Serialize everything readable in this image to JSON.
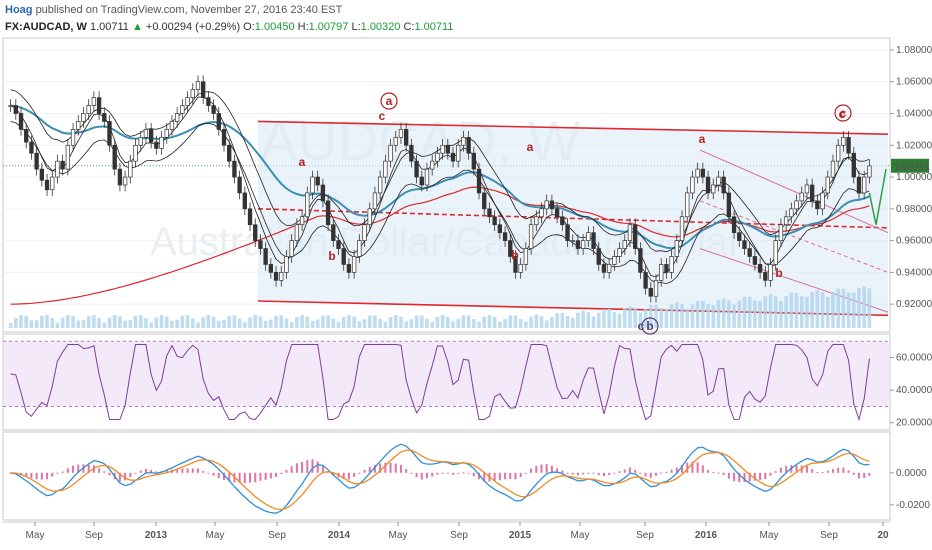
{
  "header": {
    "author": "Hoag",
    "published_text": "published on TradingView.com, November 27, 2016 23:40 EST",
    "symbol": "FX:AUDCAD, W",
    "last_price": "1.00711",
    "change_arrow": "▲",
    "change": "+0.00294 (+0.29%)",
    "open_label": "O:",
    "open": "1.00450",
    "high_label": "H:",
    "high": "1.00797",
    "low_label": "L:",
    "low": "1.00320",
    "close_label": "C:",
    "close": "1.00711"
  },
  "watermark": {
    "line1": "AUDCAD, W",
    "line2": "Australian Dollar/Canadian Dollar"
  },
  "colors": {
    "up_candle": "#ffffff",
    "down_candle": "#333333",
    "channel_line": "#e0282f",
    "channel_fill": "#dcebf7",
    "ema_blue": "#3b8fb3",
    "ema_red": "#e0282f",
    "rsi_line": "#7b3f9e",
    "rsi_fill": "#f0e0f7",
    "macd_line": "#2f8fd8",
    "signal_line": "#f08a24",
    "hist": "#d3377e",
    "wave_label": "#b22222",
    "wave_label_dark": "#5a3c6e"
  },
  "chart_data": [
    {
      "type": "candlestick",
      "title": "FX:AUDCAD, W",
      "y_ticks": [
        "1.08000",
        "1.06000",
        "1.04000",
        "1.02000",
        "1.00000",
        "0.98000",
        "0.96000",
        "0.94000",
        "0.92000"
      ],
      "ylim": [
        0.905,
        1.085
      ],
      "current_price_label": "1.00711",
      "x_ticks": [
        "May",
        "Sep",
        "2013",
        "May",
        "Sep",
        "2014",
        "May",
        "Sep",
        "2015",
        "May",
        "Sep",
        "2016",
        "May",
        "Sep",
        "20"
      ],
      "closes": [
        1.045,
        1.04,
        1.03,
        1.022,
        1.015,
        1.005,
        0.998,
        0.992,
        1.0,
        1.01,
        1.005,
        1.02,
        1.03,
        1.035,
        1.04,
        1.045,
        1.05,
        1.04,
        1.035,
        1.02,
        1.005,
        0.995,
        1.0,
        1.01,
        1.02,
        1.025,
        1.03,
        1.022,
        1.018,
        1.025,
        1.03,
        1.035,
        1.04,
        1.045,
        1.05,
        1.055,
        1.06,
        1.05,
        1.045,
        1.04,
        1.03,
        1.02,
        1.01,
        1.0,
        0.99,
        0.98,
        0.97,
        0.96,
        0.955,
        0.945,
        0.94,
        0.935,
        0.94,
        0.95,
        0.96,
        0.97,
        0.975,
        0.99,
        1.0,
        0.995,
        0.985,
        0.97,
        0.96,
        0.955,
        0.945,
        0.94,
        0.95,
        0.96,
        0.97,
        0.98,
        0.99,
        1.0,
        1.01,
        1.02,
        1.025,
        1.03,
        1.02,
        1.01,
        1.0,
        0.995,
        1.005,
        1.01,
        1.015,
        1.02,
        1.015,
        1.01,
        1.02,
        1.025,
        1.015,
        1.005,
        0.99,
        0.98,
        0.975,
        0.97,
        0.965,
        0.96,
        0.95,
        0.94,
        0.945,
        0.955,
        0.97,
        0.975,
        0.98,
        0.985,
        0.98,
        0.975,
        0.97,
        0.96,
        0.96,
        0.955,
        0.96,
        0.965,
        0.955,
        0.945,
        0.94,
        0.945,
        0.95,
        0.955,
        0.96,
        0.97,
        0.955,
        0.94,
        0.93,
        0.925,
        0.935,
        0.945,
        0.94,
        0.95,
        0.96,
        0.975,
        0.99,
        1.0,
        1.005,
        1.0,
        0.99,
        0.995,
        1.0,
        0.99,
        0.975,
        0.965,
        0.96,
        0.955,
        0.95,
        0.945,
        0.94,
        0.935,
        0.945,
        0.96,
        0.97,
        0.975,
        0.98,
        0.985,
        0.99,
        0.995,
        0.985,
        0.98,
        0.99,
        1.0,
        1.01,
        1.02,
        1.025,
        1.015,
        1.0,
        0.99,
        1.0,
        1.007
      ],
      "overlays": [
        "EMA fast",
        "EMA slow",
        "Bollinger-style envelope",
        "red long EMA"
      ]
    },
    {
      "type": "line",
      "title": "RSI",
      "y_ticks": [
        "60.0000",
        "40.0000",
        "20.0000"
      ],
      "ylim": [
        18,
        72
      ]
    },
    {
      "type": "line",
      "title": "MACD",
      "y_ticks": [
        "0.0000",
        "-0.0200"
      ],
      "ylim": [
        -0.027,
        0.023
      ]
    }
  ],
  "wave_labels": [
    {
      "text": "a",
      "circled": true
    },
    {
      "text": "c",
      "circled": false
    },
    {
      "text": "a",
      "circled": false
    },
    {
      "text": "b",
      "circled": false
    },
    {
      "text": "b",
      "circled": false
    },
    {
      "text": "a",
      "circled": false
    },
    {
      "text": "a",
      "circled": false
    },
    {
      "text": "b",
      "circled": false
    },
    {
      "text": "c",
      "circled": false
    },
    {
      "text": "b",
      "circled": true
    },
    {
      "text": "c",
      "circled": true
    },
    {
      "text": "c",
      "circled": false
    }
  ]
}
